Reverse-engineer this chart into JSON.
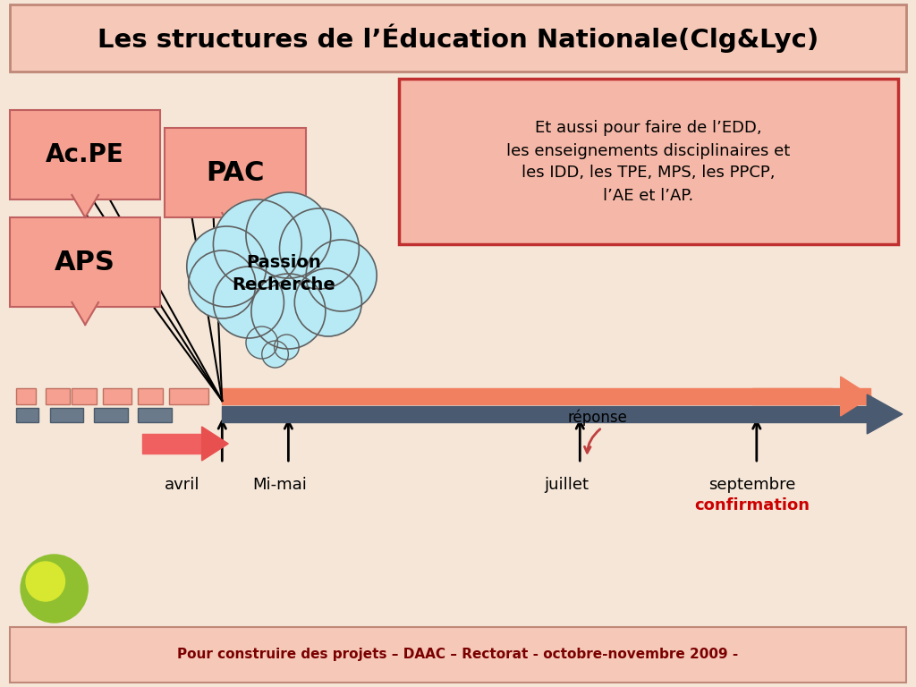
{
  "title": "Les structures de l’Éducation Nationale(Clg&Lyc)",
  "bg_color": "#f5c8b8",
  "main_bg": "#f5e6d8",
  "footer_text": "Pour construire des projets – DAAC – Rectorat - octobre-novembre 2009 -",
  "footer_color": "#7a0000",
  "info_box_text": "Et aussi pour faire de l’EDD,\nles enseignements disciplinaires et\nles IDD, les TPE, MPS, les PPCP,\nl’AE et l’AP.",
  "ac_pe_text": "Ac.PE",
  "aps_text": "APS",
  "pac_text": "PAC",
  "cloud_text": "Passion\nRecherche",
  "dates": [
    "avril",
    "Mi-mai",
    "juillet",
    "septembre"
  ],
  "reponse_text": "réponse",
  "confirmation_text": "confirmation",
  "confirmation_color": "#cc0000",
  "arrow_salmon": "#f08060",
  "arrow_dark": "#4a5a70"
}
